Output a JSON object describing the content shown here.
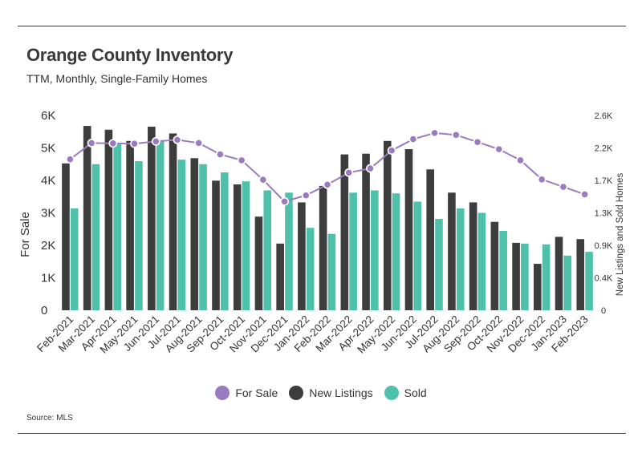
{
  "header": {
    "title": "Orange County Inventory",
    "subtitle": "TTM, Monthly, Single-Family Homes"
  },
  "footer": {
    "source": "Source: MLS"
  },
  "colors": {
    "for_sale": "#9b7bbf",
    "new_listings": "#3d3d3d",
    "sold": "#4fc1ab"
  },
  "chart_data": {
    "type": "bar",
    "title": "Orange County Inventory",
    "subtitle": "TTM, Monthly, Single-Family Homes",
    "ylabel": "For Sale",
    "y2label": "New Listings and Sold Homes",
    "ylim": [
      0,
      6000
    ],
    "y2lim": [
      0,
      2600
    ],
    "yticks": [
      "0",
      "1K",
      "2K",
      "3K",
      "4K",
      "5K",
      "6K"
    ],
    "y2ticks": [
      "0",
      "0.4K",
      "0.9K",
      "1.3K",
      "1.7K",
      "2.2K",
      "2.6K"
    ],
    "legend_position": "bottom",
    "categories": [
      "Feb-2021",
      "Mar-2021",
      "Apr-2021",
      "May-2021",
      "Jun-2021",
      "Jul-2021",
      "Aug-2021",
      "Sep-2021",
      "Oct-2021",
      "Nov-2021",
      "Dec-2021",
      "Jan-2022",
      "Feb-2022",
      "Mar-2022",
      "Apr-2022",
      "May-2022",
      "Jun-2022",
      "Jul-2022",
      "Aug-2022",
      "Sep-2022",
      "Oct-2022",
      "Nov-2022",
      "Dec-2022",
      "Jan-2023",
      "Feb-2023"
    ],
    "series": [
      {
        "name": "For Sale",
        "type": "line",
        "axis": "left",
        "values": [
          4650,
          5150,
          5140,
          5130,
          5200,
          5250,
          5150,
          4800,
          4620,
          4020,
          3350,
          3540,
          3870,
          4240,
          4370,
          4920,
          5270,
          5460,
          5400,
          5180,
          4960,
          4620,
          4030,
          3800,
          3570
        ]
      },
      {
        "name": "New Listings",
        "type": "bar",
        "axis": "right",
        "values": [
          1960,
          2460,
          2410,
          2260,
          2450,
          2360,
          2030,
          1730,
          1680,
          1250,
          890,
          1440,
          1660,
          2080,
          2090,
          2260,
          2150,
          1880,
          1570,
          1440,
          1180,
          900,
          620,
          980,
          950
        ]
      },
      {
        "name": "Sold",
        "type": "bar",
        "axis": "right",
        "values": [
          1360,
          1950,
          2230,
          1990,
          2270,
          2010,
          1950,
          1840,
          1720,
          1600,
          1570,
          1100,
          1020,
          1570,
          1600,
          1560,
          1450,
          1220,
          1360,
          1300,
          1060,
          890,
          880,
          730,
          780
        ]
      }
    ]
  }
}
